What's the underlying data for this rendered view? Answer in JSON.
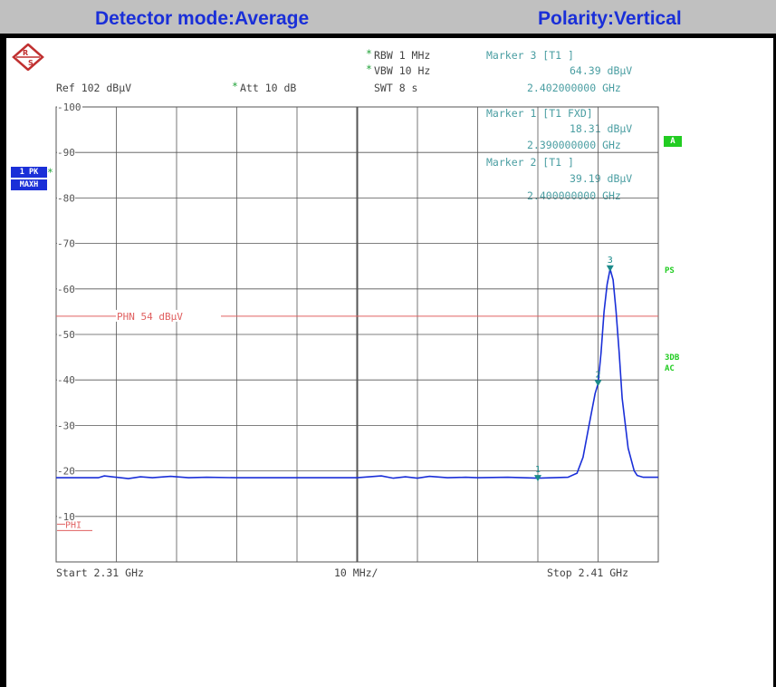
{
  "header": {
    "left": "Detector mode:Average",
    "right": "Polarity:Vertical"
  },
  "settings": {
    "ref": "Ref  102 dBµV",
    "att_star": "*",
    "att": "Att  10 dB",
    "rbw_star": "*",
    "rbw": "RBW 1 MHz",
    "vbw_star": "*",
    "vbw": "VBW 10 Hz",
    "swt": "SWT 8 s"
  },
  "markers": [
    {
      "title": "Marker 3 [T1 ]",
      "level": "64.39 dBµV",
      "freq": "2.402000000 GHz"
    },
    {
      "title": "Marker 1 [T1 FXD]",
      "level": "18.31 dBµV",
      "freq": "2.390000000 GHz"
    },
    {
      "title": "Marker 2 [T1 ]",
      "level": "39.19 dBµV",
      "freq": "2.400000000 GHz"
    }
  ],
  "trace_tag": {
    "line1": "1 PK",
    "line2": "MAXH",
    "star": "*"
  },
  "side_labels": {
    "a": "A",
    "ps": "PS",
    "db3": "3DB",
    "ac": "AC"
  },
  "footer": {
    "start": "Start 2.31 GHz",
    "div": "10 MHz/",
    "stop": "Stop 2.41 GHz"
  },
  "colors": {
    "trace": "#1a2fd8",
    "limit": "#e06060",
    "marker": "#1a8a8a",
    "grid": "#555555"
  },
  "chart_data": {
    "type": "line",
    "xlim": [
      2.31,
      2.41
    ],
    "ylim": [
      0,
      100
    ],
    "y_ticks": [
      100,
      90,
      80,
      70,
      60,
      50,
      40,
      30,
      20,
      10
    ],
    "series": [
      {
        "x": [
          2.31,
          2.317,
          2.318,
          2.32,
          2.322,
          2.324,
          2.326,
          2.329,
          2.332,
          2.335,
          2.34,
          2.35,
          2.36,
          2.364,
          2.366,
          2.368,
          2.37,
          2.372,
          2.375,
          2.378,
          2.38,
          2.385,
          2.39,
          2.395,
          2.3965,
          2.3975,
          2.3985,
          2.3995,
          2.4,
          2.4005,
          2.401,
          2.4015,
          2.402,
          2.4025,
          2.403,
          2.4035,
          2.404,
          2.405,
          2.406,
          2.4065,
          2.4075,
          2.41
        ],
        "y": [
          18.5,
          18.5,
          18.9,
          18.6,
          18.3,
          18.7,
          18.5,
          18.8,
          18.5,
          18.6,
          18.5,
          18.5,
          18.5,
          18.9,
          18.4,
          18.7,
          18.4,
          18.8,
          18.5,
          18.6,
          18.5,
          18.6,
          18.4,
          18.6,
          19.5,
          23,
          30,
          37,
          39.19,
          46,
          55,
          61,
          64.39,
          62,
          55,
          46,
          36,
          25,
          20,
          19,
          18.6,
          18.6
        ]
      }
    ],
    "limit_line": {
      "label": "PHN 54 dBµV",
      "y": 54
    },
    "lower_label": "PHI",
    "marker_points": [
      {
        "label": "1",
        "x": 2.39,
        "y": 18.31
      },
      {
        "label": "2",
        "x": 2.4,
        "y": 39.19
      },
      {
        "label": "3",
        "x": 2.402,
        "y": 64.39
      }
    ]
  }
}
